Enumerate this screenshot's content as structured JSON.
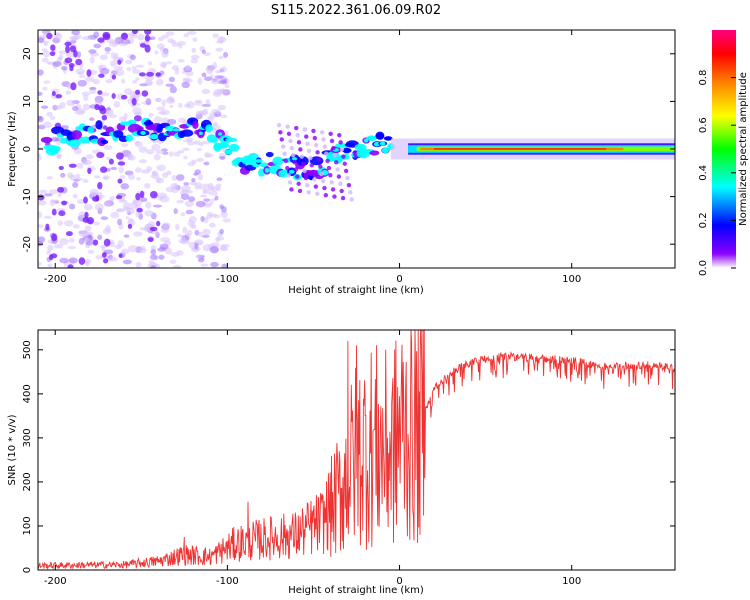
{
  "title": "S115.2022.361.06.09.R02",
  "chart_data": [
    {
      "type": "heatmap",
      "description_of_axes": "spectrogram",
      "xlabel": "Height of straight line (km)",
      "ylabel": "Frequency (Hz)",
      "xlim": [
        -210,
        160
      ],
      "ylim": [
        -25,
        25
      ],
      "x_ticks": [
        -200,
        -100,
        0,
        100
      ],
      "y_ticks": [
        -20,
        -10,
        0,
        10,
        20
      ],
      "colorbar": {
        "label": "Normalized spectral amplitude",
        "range": [
          0,
          1
        ],
        "ticks": [
          "0.0",
          "0.2",
          "0.4",
          "0.6",
          "0.8"
        ],
        "colormap": [
          "#ffffff",
          "#8a00ff",
          "#0000ff",
          "#00ffff",
          "#00ff00",
          "#ffff00",
          "#ff8000",
          "#ff0000",
          "#ff0080"
        ]
      },
      "ridge": [
        {
          "x": -200,
          "f": 3
        },
        {
          "x": -180,
          "f": 3
        },
        {
          "x": -160,
          "f": 4
        },
        {
          "x": -140,
          "f": 4
        },
        {
          "x": -120,
          "f": 5
        },
        {
          "x": -100,
          "f": 1
        },
        {
          "x": -90,
          "f": -3
        },
        {
          "x": -80,
          "f": -3
        },
        {
          "x": -70,
          "f": -3
        },
        {
          "x": -60,
          "f": -4
        },
        {
          "x": -50,
          "f": -5
        },
        {
          "x": -40,
          "f": -2
        },
        {
          "x": -30,
          "f": 0
        },
        {
          "x": -20,
          "f": 1
        },
        {
          "x": -10,
          "f": 1
        },
        {
          "x": 0,
          "f": 0.5
        },
        {
          "x": 10,
          "f": 0
        },
        {
          "x": 160,
          "f": 0
        }
      ]
    },
    {
      "type": "line",
      "xlabel": "Height of straight line (km)",
      "ylabel": "SNR (10 * v/v)",
      "xlim": [
        -210,
        160
      ],
      "ylim": [
        0,
        545
      ],
      "x_ticks": [
        -200,
        -100,
        0,
        100
      ],
      "y_ticks": [
        0,
        100,
        200,
        300,
        400,
        500
      ],
      "color": "#ee3333",
      "series_envelope": [
        {
          "x": -210,
          "y": 10
        },
        {
          "x": -160,
          "y": 12
        },
        {
          "x": -140,
          "y": 20
        },
        {
          "x": -125,
          "y": 35
        },
        {
          "x": -110,
          "y": 30
        },
        {
          "x": -95,
          "y": 60
        },
        {
          "x": -80,
          "y": 70
        },
        {
          "x": -60,
          "y": 80
        },
        {
          "x": -45,
          "y": 110
        },
        {
          "x": -35,
          "y": 180
        },
        {
          "x": -25,
          "y": 280
        },
        {
          "x": -15,
          "y": 300
        },
        {
          "x": -5,
          "y": 280
        },
        {
          "x": 0,
          "y": 330
        },
        {
          "x": 5,
          "y": 340
        },
        {
          "x": 10,
          "y": 320
        },
        {
          "x": 20,
          "y": 420
        },
        {
          "x": 30,
          "y": 460
        },
        {
          "x": 45,
          "y": 485
        },
        {
          "x": 60,
          "y": 495
        },
        {
          "x": 80,
          "y": 490
        },
        {
          "x": 100,
          "y": 485
        },
        {
          "x": 120,
          "y": 470
        },
        {
          "x": 140,
          "y": 475
        },
        {
          "x": 160,
          "y": 470
        }
      ],
      "spikes": [
        {
          "x": -125,
          "y": 75
        },
        {
          "x": -88,
          "y": 155
        },
        {
          "x": -30,
          "y": 520
        },
        {
          "x": -25,
          "y": 510
        },
        {
          "x": -20,
          "y": 400
        },
        {
          "x": 9,
          "y": 545
        },
        {
          "x": 12,
          "y": 470
        }
      ]
    }
  ]
}
